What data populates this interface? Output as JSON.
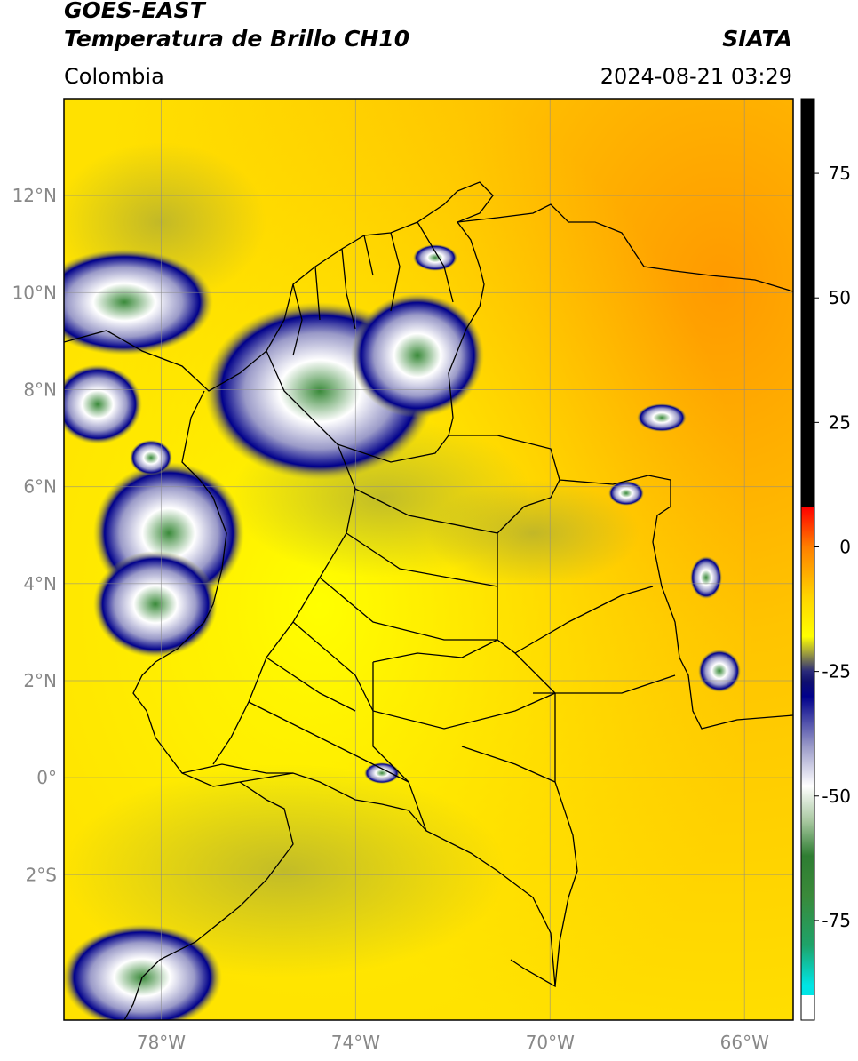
{
  "header": {
    "title_line1": "GOES-EAST",
    "title_line2": "Temperatura de Brillo CH10",
    "brand": "SIATA",
    "region": "Colombia",
    "timestamp": "2024-08-21 03:29"
  },
  "map": {
    "lon_range": [
      -80,
      -65
    ],
    "lat_range": [
      -5,
      14
    ],
    "lat_ticks": [
      {
        "value": 12,
        "label": "12°N"
      },
      {
        "value": 10,
        "label": "10°N"
      },
      {
        "value": 8,
        "label": "8°N"
      },
      {
        "value": 6,
        "label": "6°N"
      },
      {
        "value": 4,
        "label": "4°N"
      },
      {
        "value": 2,
        "label": "2°N"
      },
      {
        "value": 0,
        "label": "0°"
      },
      {
        "value": -2,
        "label": "2°S"
      }
    ],
    "lon_ticks": [
      {
        "value": -78,
        "label": "78°W"
      },
      {
        "value": -74,
        "label": "74°W"
      },
      {
        "value": -70,
        "label": "70°W"
      },
      {
        "value": -66,
        "label": "66°W"
      }
    ],
    "grid": true
  },
  "colorbar": {
    "range": [
      -95,
      90
    ],
    "ticks": [
      {
        "value": 75,
        "label": "75"
      },
      {
        "value": 50,
        "label": "50"
      },
      {
        "value": 25,
        "label": "25"
      },
      {
        "value": 0,
        "label": "0"
      },
      {
        "value": -25,
        "label": "-25"
      },
      {
        "value": -50,
        "label": "-50"
      },
      {
        "value": -75,
        "label": "-75"
      }
    ],
    "stops": [
      {
        "value": 90,
        "color": "#000000"
      },
      {
        "value": 8,
        "color": "#000000"
      },
      {
        "value": 8,
        "color": "#ff0000"
      },
      {
        "value": 0,
        "color": "#ff7f00"
      },
      {
        "value": -10,
        "color": "#ffd400"
      },
      {
        "value": -18,
        "color": "#ffff00"
      },
      {
        "value": -21,
        "color": "#a8a838"
      },
      {
        "value": -25,
        "color": "#2a2a7a"
      },
      {
        "value": -27,
        "color": "#10106e"
      },
      {
        "value": -30,
        "color": "#00008b"
      },
      {
        "value": -40,
        "color": "#9a9ac8"
      },
      {
        "value": -48,
        "color": "#ffffff"
      },
      {
        "value": -55,
        "color": "#a8c8a0"
      },
      {
        "value": -62,
        "color": "#2e7d32"
      },
      {
        "value": -70,
        "color": "#3a8a3a"
      },
      {
        "value": -80,
        "color": "#1ea36a"
      },
      {
        "value": -88,
        "color": "#00e5e5"
      },
      {
        "value": -90,
        "color": "#00e5e5"
      },
      {
        "value": -90,
        "color": "#ffffff"
      },
      {
        "value": -95,
        "color": "#ffffff"
      }
    ]
  },
  "colors": {
    "warm_background": "#ffd700",
    "very_warm": "#ff9a00",
    "frame": "#000000"
  }
}
